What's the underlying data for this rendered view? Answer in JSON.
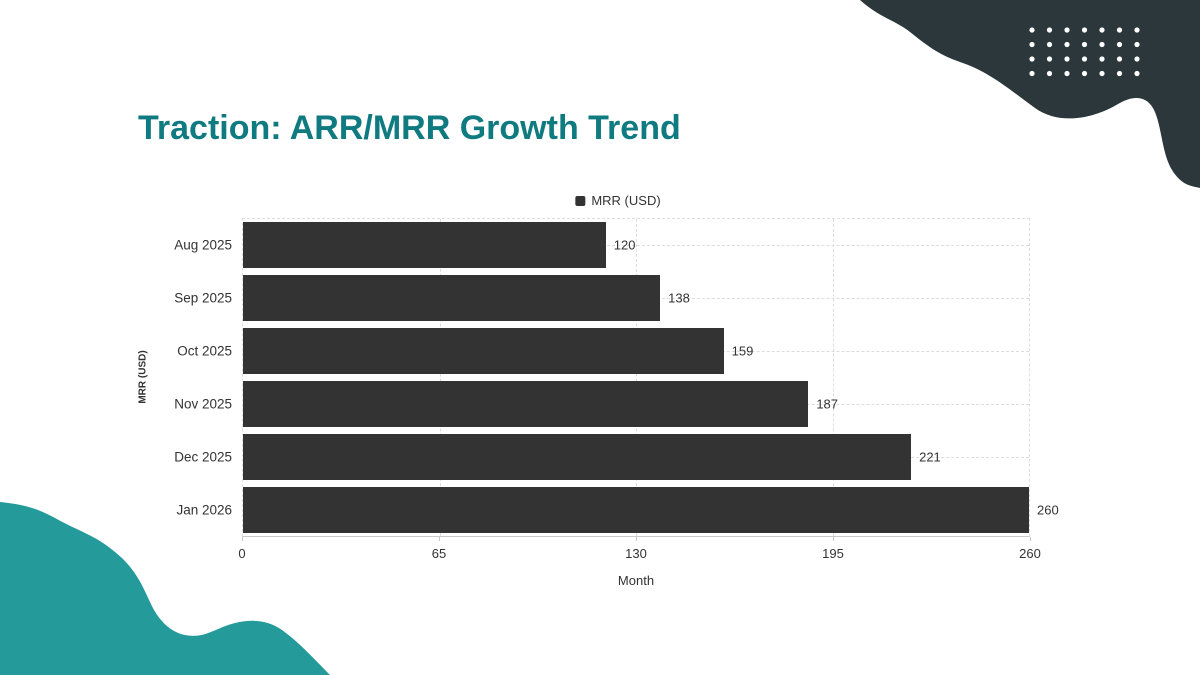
{
  "slide": {
    "title": "Traction: ARR/MRR Growth Trend"
  },
  "theme": {
    "title_color": "#0f7a80",
    "bar_color": "#333333",
    "dark_blob_color": "#2b373a",
    "teal_blob_color": "#249a9b",
    "grid_color": "#dddddd",
    "axis_color": "#c9c9c9",
    "label_color": "#333333",
    "dot_color": "#ffffff"
  },
  "chart_data": {
    "type": "bar",
    "orientation": "horizontal",
    "title": "",
    "legend": "MRR (USD)",
    "legend_position": "top-center",
    "categories": [
      "Aug 2025",
      "Sep 2025",
      "Oct 2025",
      "Nov 2025",
      "Dec 2025",
      "Jan 2026"
    ],
    "values": [
      120,
      138,
      159,
      187,
      221,
      260
    ],
    "xlabel": "Month",
    "ylabel": "MRR (USD)",
    "xlim": [
      0,
      260
    ],
    "xticks": [
      0,
      65,
      130,
      195,
      260
    ],
    "grid": true,
    "grid_style": "dashed",
    "bar_color": "#333333"
  }
}
